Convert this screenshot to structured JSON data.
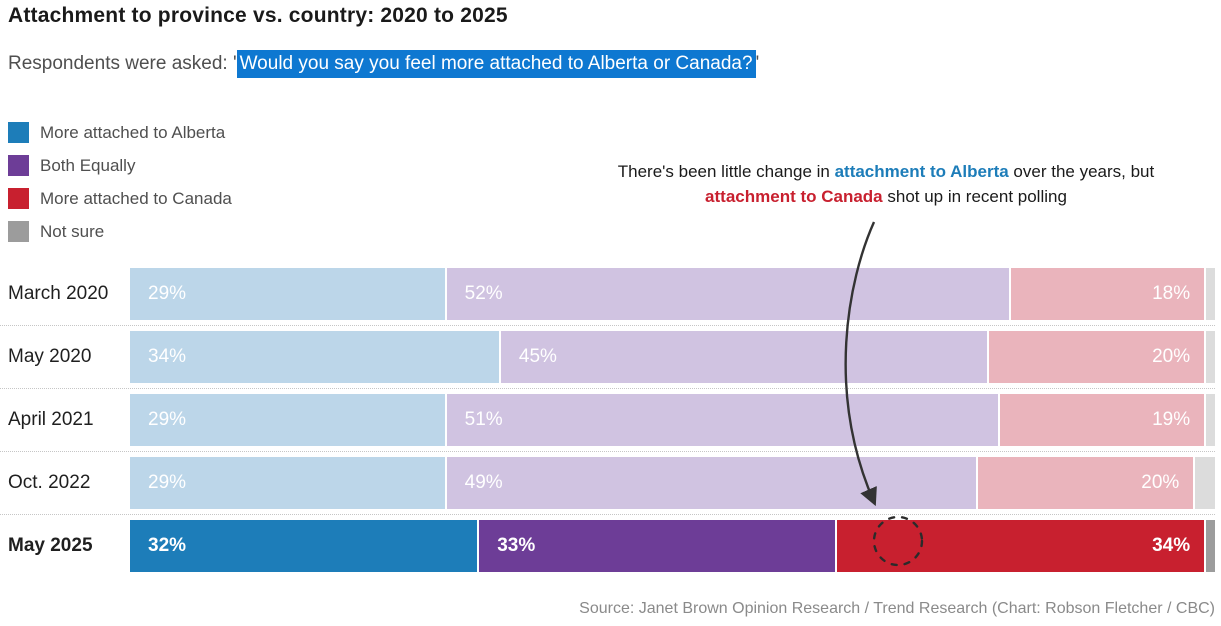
{
  "title": "Attachment to province vs. country: 2020 to 2025",
  "subtitle": {
    "prefix": "Respondents were asked: '",
    "highlight": "Would you say you feel more attached to Alberta or Canada?",
    "suffix": "'"
  },
  "legend": [
    {
      "label": "More attached to Alberta",
      "color": "#1d7db9"
    },
    {
      "label": "Both Equally",
      "color": "#6d3d97"
    },
    {
      "label": "More attached to Canada",
      "color": "#c8202f"
    },
    {
      "label": "Not sure",
      "color": "#9c9c9c"
    }
  ],
  "annotation": {
    "part1": "There's been little change in ",
    "alberta_phrase": "attachment to Alberta",
    "part2": " over the years, but ",
    "canada_phrase": "attachment to Canada",
    "part3": " shot up in recent polling"
  },
  "colors": {
    "highlight_bg": "#0e78d1",
    "annotation_blue": "#1d7db9",
    "annotation_red": "#c8202f",
    "arrow": "#333333"
  },
  "chart_data": {
    "type": "bar",
    "stacked": true,
    "orientation": "horizontal",
    "unit": "%",
    "categories": [
      "March 2020",
      "May 2020",
      "April 2021",
      "Oct. 2022",
      "May 2025"
    ],
    "highlight_category": "May 2025",
    "series": [
      {
        "name": "More attached to Alberta",
        "color": "#1d7db9",
        "muted_color": "#bcd6e9",
        "values": [
          29,
          34,
          29,
          29,
          32
        ]
      },
      {
        "name": "Both Equally",
        "color": "#6d3d97",
        "muted_color": "#d0c3e1",
        "values": [
          52,
          45,
          51,
          49,
          33
        ]
      },
      {
        "name": "More attached to Canada",
        "color": "#c8202f",
        "muted_color": "#eab4bc",
        "values": [
          18,
          20,
          19,
          20,
          34
        ]
      },
      {
        "name": "Not sure",
        "color": "#9c9c9c",
        "muted_color": "#dcdcdc",
        "values": [
          1,
          1,
          1,
          2,
          1
        ]
      }
    ],
    "value_labels_shown_for": [
      "More attached to Alberta",
      "Both Equally",
      "More attached to Canada"
    ],
    "xlim": [
      0,
      100
    ],
    "grid": false,
    "legend_position": "top-left"
  },
  "source": "Source: Janet Brown Opinion Research / Trend Research (Chart: Robson Fletcher / CBC)"
}
